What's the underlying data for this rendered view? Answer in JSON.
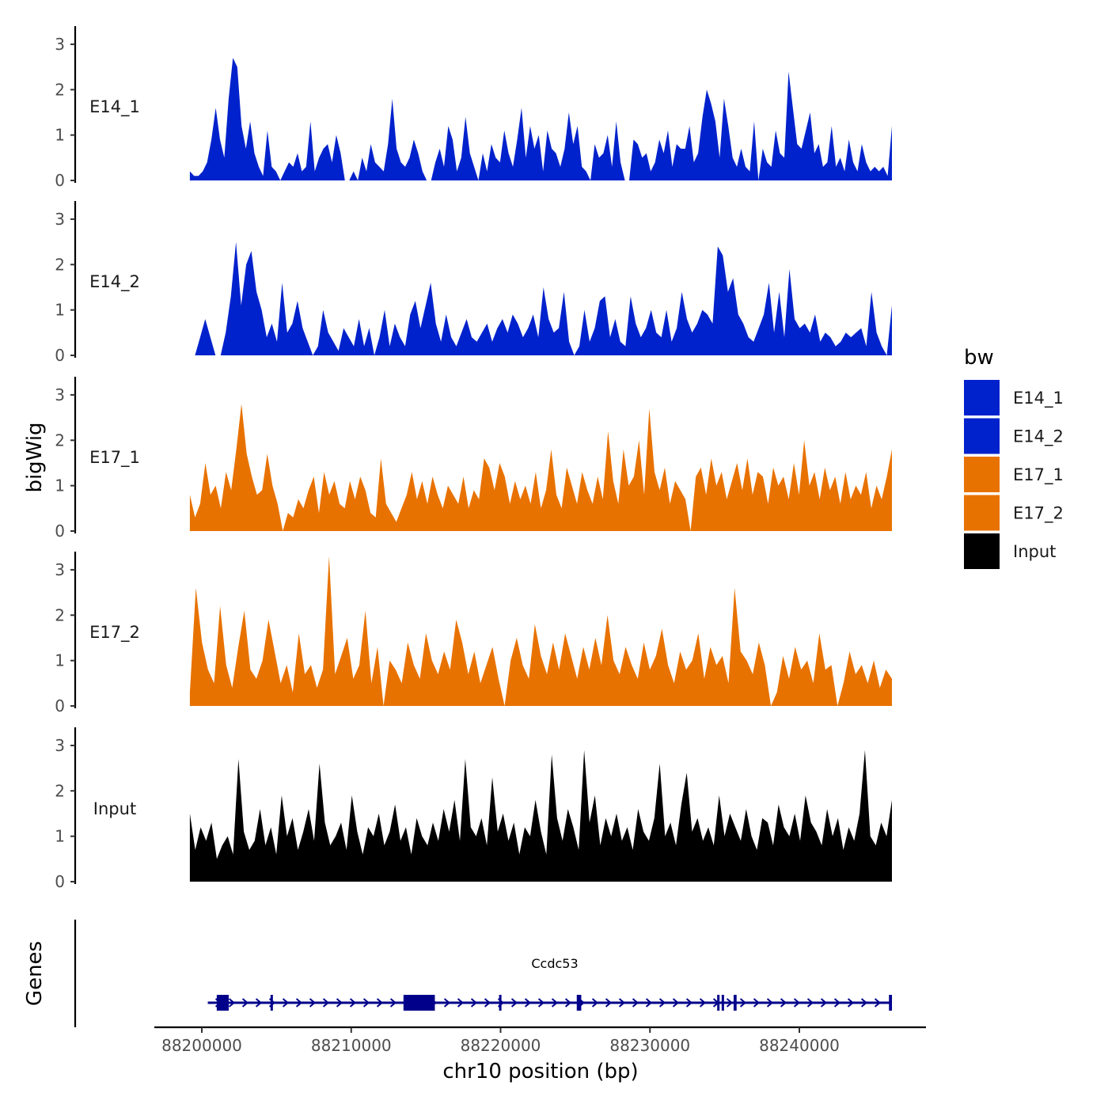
{
  "chart_data": {
    "type": "area",
    "region_start": 88199200,
    "region_end": 88246200,
    "xlabel": "chr10 position (bp)",
    "ylabel": "bigWig",
    "genes_label": "Genes",
    "x_ticks": [
      {
        "value": 88200000,
        "label": "88200000"
      },
      {
        "value": 88210000,
        "label": "88210000"
      },
      {
        "value": 88220000,
        "label": "88220000"
      },
      {
        "value": 88230000,
        "label": "88230000"
      },
      {
        "value": 88240000,
        "label": "88240000"
      }
    ],
    "y_ticks": [
      {
        "value": 0,
        "label": "0"
      },
      {
        "value": 1,
        "label": "1"
      },
      {
        "value": 2,
        "label": "2"
      },
      {
        "value": 3,
        "label": "3"
      }
    ],
    "ylim": [
      0,
      3.4
    ],
    "legend": {
      "title": "bw",
      "entries": [
        {
          "name": "E14_1",
          "color": "#0022CC"
        },
        {
          "name": "E14_2",
          "color": "#0022CC"
        },
        {
          "name": "E17_1",
          "color": "#E87200"
        },
        {
          "name": "E17_2",
          "color": "#E87200"
        },
        {
          "name": "Input",
          "color": "#000000"
        }
      ]
    },
    "series": [
      {
        "name": "E14_1",
        "color": "#0022CC",
        "values": [
          0.2,
          0.1,
          0.1,
          0.2,
          0.4,
          0.9,
          1.6,
          0.9,
          0.5,
          1.8,
          2.7,
          2.5,
          1.2,
          0.7,
          1.3,
          0.6,
          0.3,
          0.1,
          1.1,
          0.3,
          0.2,
          0.0,
          0.2,
          0.4,
          0.3,
          0.6,
          0.2,
          0.3,
          1.3,
          0.2,
          0.5,
          0.7,
          0.8,
          0.4,
          1.0,
          0.6,
          0.0,
          0.0,
          0.2,
          0.0,
          0.5,
          0.2,
          0.8,
          0.4,
          0.3,
          0.2,
          0.8,
          1.8,
          0.7,
          0.4,
          0.3,
          0.5,
          0.9,
          0.6,
          0.2,
          0.0,
          0.0,
          0.4,
          0.7,
          0.3,
          1.2,
          0.9,
          0.2,
          0.5,
          1.4,
          0.6,
          0.3,
          0.0,
          0.6,
          0.2,
          0.8,
          0.5,
          0.4,
          1.1,
          0.6,
          0.3,
          0.9,
          1.6,
          0.5,
          1.2,
          0.7,
          1.0,
          0.2,
          1.1,
          0.7,
          0.6,
          0.3,
          0.7,
          1.5,
          0.8,
          1.2,
          0.3,
          0.2,
          0.0,
          0.8,
          0.5,
          0.6,
          1.0,
          0.3,
          1.3,
          0.4,
          0.0,
          0.0,
          0.9,
          0.8,
          0.5,
          0.6,
          0.2,
          0.4,
          0.9,
          0.6,
          1.1,
          0.3,
          0.8,
          0.7,
          0.7,
          1.2,
          0.4,
          0.6,
          1.4,
          2.0,
          1.7,
          1.3,
          0.5,
          1.8,
          1.2,
          0.5,
          0.3,
          0.7,
          0.3,
          0.2,
          1.3,
          0.0,
          0.7,
          0.4,
          0.3,
          1.1,
          0.6,
          0.5,
          2.4,
          1.6,
          0.8,
          0.7,
          1.1,
          1.5,
          0.6,
          0.8,
          0.3,
          0.4,
          1.2,
          0.3,
          0.5,
          0.2,
          0.9,
          0.4,
          0.2,
          0.8,
          0.4,
          0.2,
          0.3,
          0.2,
          0.3,
          0.1,
          1.2
        ]
      },
      {
        "name": "E14_2",
        "color": "#0022CC",
        "values": [
          0.0,
          0.0,
          0.4,
          0.8,
          0.4,
          0.0,
          0.0,
          0.5,
          1.3,
          2.5,
          1.1,
          2.0,
          2.3,
          1.4,
          1.0,
          0.4,
          0.7,
          0.3,
          1.6,
          0.5,
          0.7,
          1.2,
          0.6,
          0.3,
          0.0,
          0.2,
          1.0,
          0.5,
          0.3,
          0.1,
          0.6,
          0.4,
          0.2,
          0.8,
          0.2,
          0.6,
          0.0,
          0.4,
          1.0,
          0.2,
          0.7,
          0.4,
          0.2,
          0.9,
          1.2,
          0.6,
          1.1,
          1.6,
          0.7,
          0.3,
          0.9,
          0.4,
          0.2,
          0.5,
          0.8,
          0.4,
          0.3,
          0.5,
          0.7,
          0.3,
          0.6,
          0.8,
          0.5,
          0.9,
          0.7,
          0.4,
          0.6,
          0.9,
          0.4,
          1.5,
          0.8,
          0.5,
          0.6,
          1.4,
          0.3,
          0.0,
          0.2,
          1.0,
          0.3,
          0.6,
          1.2,
          1.3,
          0.4,
          0.8,
          0.3,
          0.2,
          1.3,
          0.7,
          0.4,
          0.6,
          1.0,
          0.5,
          0.4,
          1.0,
          0.3,
          0.6,
          1.4,
          0.8,
          0.5,
          0.7,
          1.0,
          0.9,
          0.7,
          2.4,
          2.2,
          1.4,
          1.7,
          0.9,
          0.7,
          0.4,
          0.3,
          0.6,
          0.9,
          1.6,
          0.5,
          1.4,
          0.4,
          1.9,
          0.8,
          0.6,
          0.7,
          0.5,
          0.9,
          0.3,
          0.5,
          0.4,
          0.2,
          0.3,
          0.5,
          0.4,
          0.5,
          0.6,
          0.2,
          1.4,
          0.5,
          0.2,
          0.0,
          1.1
        ]
      },
      {
        "name": "E17_1",
        "color": "#E87200",
        "values": [
          0.8,
          0.3,
          0.6,
          1.5,
          0.8,
          1.0,
          0.5,
          1.3,
          0.9,
          1.8,
          2.8,
          1.7,
          1.2,
          0.8,
          0.9,
          1.7,
          1.0,
          0.6,
          0.0,
          0.4,
          0.3,
          0.7,
          0.5,
          0.9,
          1.2,
          0.4,
          1.3,
          0.8,
          1.1,
          0.6,
          0.5,
          1.1,
          0.7,
          1.2,
          0.9,
          0.4,
          0.3,
          1.6,
          0.6,
          0.4,
          0.2,
          0.5,
          0.8,
          1.3,
          0.7,
          1.1,
          0.6,
          1.2,
          0.8,
          0.5,
          1.0,
          0.8,
          0.6,
          1.2,
          0.5,
          0.9,
          0.7,
          1.6,
          1.4,
          0.9,
          1.5,
          1.2,
          0.6,
          1.1,
          0.7,
          1.0,
          0.6,
          1.3,
          0.5,
          0.9,
          1.8,
          0.8,
          0.5,
          1.4,
          1.0,
          0.6,
          1.3,
          0.9,
          0.6,
          1.2,
          0.7,
          2.2,
          1.1,
          0.6,
          1.8,
          1.0,
          1.2,
          2.0,
          0.8,
          2.7,
          1.3,
          0.9,
          1.4,
          0.6,
          1.1,
          0.9,
          0.7,
          0.0,
          1.2,
          1.4,
          0.8,
          1.6,
          1.0,
          1.3,
          0.7,
          1.1,
          1.5,
          0.9,
          1.6,
          0.8,
          1.3,
          1.2,
          0.6,
          1.4,
          1.0,
          1.2,
          0.7,
          1.5,
          0.8,
          2.0,
          1.0,
          1.3,
          0.7,
          1.4,
          0.9,
          1.2,
          0.6,
          1.3,
          0.7,
          1.0,
          0.8,
          1.3,
          0.5,
          1.0,
          0.7,
          1.2,
          1.8
        ]
      },
      {
        "name": "E17_2",
        "color": "#E87200",
        "values": [
          0.3,
          2.6,
          1.4,
          0.8,
          0.5,
          2.2,
          0.9,
          0.4,
          1.3,
          2.1,
          0.8,
          0.6,
          1.0,
          1.9,
          1.2,
          0.5,
          0.9,
          0.3,
          1.6,
          0.7,
          0.9,
          0.4,
          0.8,
          3.3,
          0.7,
          1.1,
          1.5,
          0.6,
          0.9,
          2.1,
          0.5,
          1.3,
          0.0,
          1.0,
          0.8,
          0.5,
          1.4,
          0.9,
          0.6,
          1.6,
          1.0,
          0.7,
          1.2,
          0.8,
          1.9,
          1.4,
          0.7,
          1.2,
          0.5,
          0.9,
          1.3,
          0.6,
          0.0,
          1.0,
          1.5,
          0.9,
          0.6,
          1.8,
          1.1,
          0.7,
          1.4,
          0.8,
          1.6,
          1.1,
          0.6,
          1.3,
          0.8,
          1.5,
          0.9,
          2.0,
          1.0,
          0.7,
          1.3,
          0.9,
          0.6,
          1.4,
          0.8,
          1.1,
          1.7,
          0.9,
          0.5,
          1.2,
          0.8,
          1.0,
          1.6,
          0.6,
          1.3,
          0.9,
          1.1,
          0.5,
          2.6,
          1.2,
          1.0,
          0.7,
          1.4,
          0.9,
          0.0,
          0.3,
          1.1,
          0.6,
          1.3,
          0.8,
          1.0,
          0.5,
          1.6,
          0.8,
          0.9,
          0.0,
          0.5,
          1.2,
          0.7,
          0.9,
          0.5,
          1.0,
          0.4,
          0.8,
          0.6
        ]
      },
      {
        "name": "Input",
        "color": "#000000",
        "values": [
          1.5,
          0.7,
          1.2,
          0.9,
          1.3,
          0.5,
          0.8,
          1.0,
          0.6,
          2.7,
          1.1,
          0.7,
          0.9,
          1.6,
          0.8,
          1.2,
          0.6,
          1.9,
          1.0,
          1.4,
          0.7,
          1.1,
          1.6,
          0.9,
          2.6,
          1.3,
          0.8,
          1.0,
          1.3,
          0.7,
          1.9,
          1.1,
          0.6,
          1.2,
          1.0,
          1.5,
          0.8,
          1.1,
          1.7,
          0.9,
          1.2,
          0.6,
          1.4,
          1.0,
          0.8,
          1.3,
          0.9,
          1.6,
          1.1,
          1.8,
          0.9,
          2.7,
          1.2,
          1.0,
          1.4,
          0.8,
          2.3,
          1.1,
          1.5,
          0.9,
          1.3,
          0.6,
          1.2,
          1.0,
          1.8,
          1.1,
          0.6,
          2.8,
          1.4,
          0.9,
          1.6,
          1.2,
          0.7,
          2.9,
          1.3,
          1.9,
          0.8,
          1.4,
          1.0,
          1.5,
          0.9,
          1.2,
          0.7,
          1.6,
          1.1,
          0.9,
          1.4,
          2.6,
          1.0,
          1.3,
          0.8,
          1.7,
          2.4,
          1.1,
          1.4,
          0.9,
          1.2,
          0.8,
          1.9,
          1.0,
          1.5,
          1.2,
          0.9,
          1.6,
          1.0,
          0.7,
          1.4,
          1.3,
          0.8,
          1.7,
          1.2,
          1.0,
          1.5,
          0.9,
          1.9,
          1.3,
          1.1,
          0.8,
          1.6,
          1.0,
          1.4,
          0.7,
          1.2,
          0.9,
          1.5,
          2.9,
          1.0,
          0.8,
          1.3,
          1.0,
          1.8
        ]
      }
    ],
    "gene": {
      "name": "Ccdc53",
      "start": 88200400,
      "end": 88246100,
      "strand": "+",
      "color": "#00008B",
      "exons": [
        {
          "start": 88201000,
          "end": 88201800
        },
        {
          "start": 88204600,
          "end": 88204700
        },
        {
          "start": 88213500,
          "end": 88215600
        },
        {
          "start": 88219900,
          "end": 88220000
        },
        {
          "start": 88225100,
          "end": 88225400
        },
        {
          "start": 88234500,
          "end": 88234600
        },
        {
          "start": 88234800,
          "end": 88234900
        },
        {
          "start": 88235600,
          "end": 88235800
        },
        {
          "start": 88246000,
          "end": 88246200
        }
      ]
    }
  }
}
